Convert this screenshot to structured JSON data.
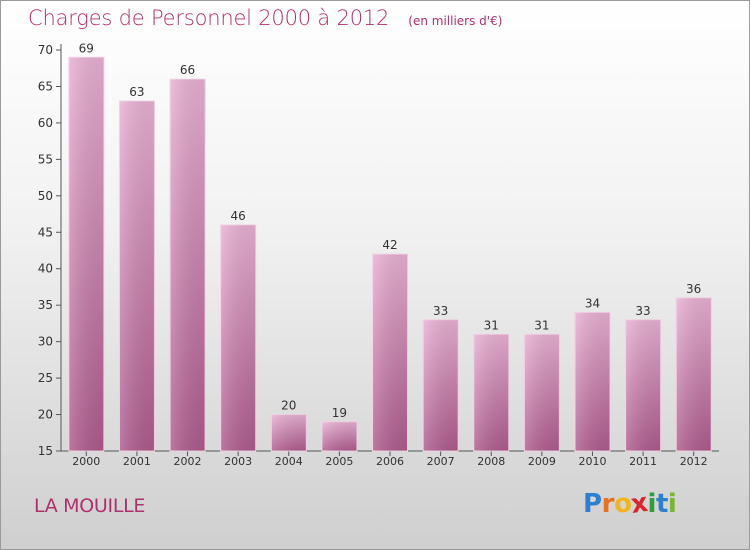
{
  "header": {
    "title": "Charges de Personnel 2000 à 2012",
    "unit": "(en milliers d'€)"
  },
  "footer": {
    "commune": "LA MOUILLE",
    "brand_letters": [
      "P",
      "r",
      "o",
      "x",
      "i",
      "t",
      "i"
    ],
    "brand_colors": [
      "#2e7fd1",
      "#e8711a",
      "#f1b51c",
      "#d8262b",
      "#2e9d3a",
      "#2e7fd1",
      "#7ab532"
    ]
  },
  "chart_data": {
    "type": "bar",
    "categories": [
      "2000",
      "2001",
      "2002",
      "2003",
      "2004",
      "2005",
      "2006",
      "2007",
      "2008",
      "2009",
      "2010",
      "2011",
      "2012"
    ],
    "values": [
      69,
      63,
      66,
      46,
      20,
      19,
      42,
      33,
      31,
      31,
      34,
      33,
      36
    ],
    "data_labels": [
      "69",
      "63",
      "66",
      "46",
      "20",
      "19",
      "42",
      "33",
      "31",
      "31",
      "34",
      "33",
      "36"
    ],
    "ylim": [
      15,
      70
    ],
    "yticks": [
      "15",
      "20",
      "25",
      "30",
      "35",
      "40",
      "45",
      "50",
      "55",
      "60",
      "65",
      "70"
    ],
    "grid": false,
    "legend": "none",
    "colors": {
      "bar_light": "#e6a9cf",
      "bar_dark": "#b0598f",
      "text": "#333333",
      "title": "#b0306e"
    }
  }
}
